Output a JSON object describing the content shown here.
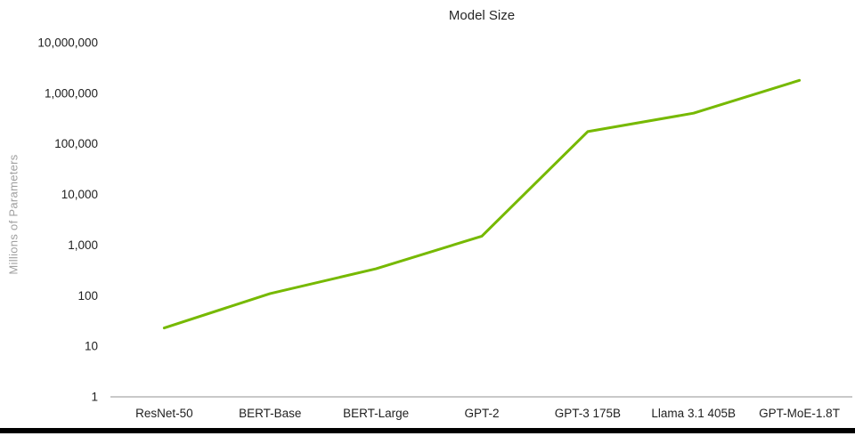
{
  "chart_data": {
    "type": "line",
    "title": "Model Size",
    "xlabel": "",
    "ylabel": "Millions of Parameters",
    "categories": [
      "ResNet-50",
      "BERT-Base",
      "BERT-Large",
      "GPT-2",
      "GPT-3 175B",
      "Llama 3.1 405B",
      "GPT-MoE-1.8T"
    ],
    "values": [
      23,
      110,
      340,
      1500,
      175000,
      405000,
      1800000
    ],
    "series_name": "Model Size",
    "yscale": "log",
    "ylim": [
      1,
      10000000
    ],
    "ytick_labels": [
      "1",
      "10",
      "100",
      "1,000",
      "10,000",
      "100,000",
      "1,000,000",
      "10,000,000"
    ],
    "grid": false,
    "legend": "none"
  },
  "colors": {
    "line": "#76b900",
    "axis_line": "#c9c9c9",
    "tick_text": "#1f1f1f",
    "y_axis_title_text": "#a0a0a0",
    "title_text": "#262626",
    "bottom_bar": "#000000"
  }
}
